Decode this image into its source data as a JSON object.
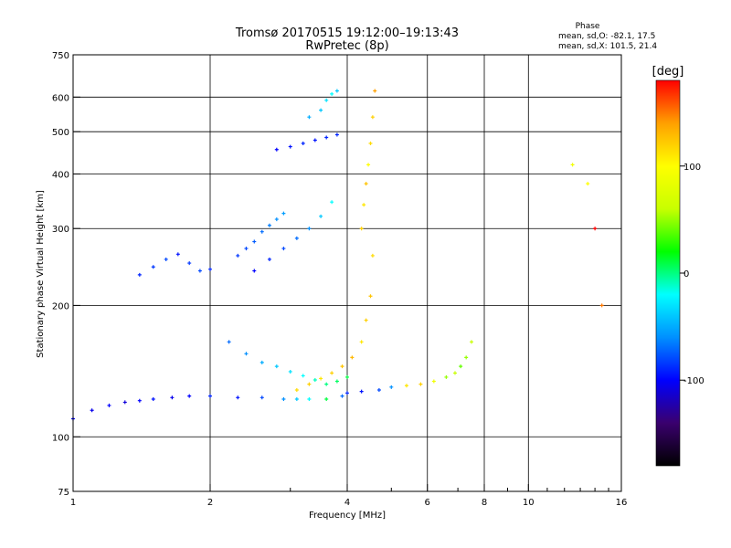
{
  "chart_data": {
    "type": "scatter",
    "title": "Tromsø 20170515 19:12:00–19:13:43",
    "subtitle": "RwPretec (8p)",
    "xlabel": "Frequency [MHz]",
    "ylabel": "Stationary phase Virtual Height [km]",
    "x_scale": "log",
    "y_scale": "log",
    "xlim": [
      1,
      16
    ],
    "ylim": [
      75,
      750
    ],
    "x_ticks": [
      1,
      2,
      4,
      6,
      8,
      10,
      16
    ],
    "x_tick_labels": [
      "1",
      "2",
      "4",
      "6",
      "8",
      "10",
      "16"
    ],
    "x_minor_ticks": [
      3,
      5,
      7,
      9,
      11,
      12,
      13,
      14,
      15
    ],
    "y_ticks": [
      75,
      100,
      200,
      300,
      400,
      500,
      600,
      750
    ],
    "y_tick_labels": [
      "75",
      "100",
      "200",
      "300",
      "400",
      "500",
      "600",
      "750"
    ],
    "y_gridlines": [
      100,
      200,
      300,
      400,
      500,
      600
    ],
    "x_gridlines": [
      2,
      4,
      6,
      8,
      10
    ],
    "grid": true,
    "phase_info": {
      "heading": "Phase",
      "line1": "mean, sd,O: -82.1, 17.5",
      "line2": "mean, sd,X: 101.5, 21.4"
    },
    "colorbar": {
      "label": "[deg]",
      "ticks": [
        100,
        0,
        -100
      ],
      "tick_labels": [
        "100",
        "0",
        "-100"
      ],
      "range": [
        -180,
        180
      ],
      "colors": [
        "#000000",
        "#3a006e",
        "#0000ff",
        "#0090ff",
        "#00ffff",
        "#00ff00",
        "#c8ff00",
        "#ffff00",
        "#ffa000",
        "#ff0000"
      ]
    },
    "series": [
      {
        "x": [
          1.0,
          1.1,
          1.2,
          1.3,
          1.4,
          1.5,
          1.65,
          1.8,
          2.0,
          2.3,
          2.6,
          2.9,
          3.1,
          3.3,
          3.6,
          3.9
        ],
        "y": [
          110,
          115,
          118,
          120,
          121,
          122,
          123,
          124,
          124,
          123,
          123,
          122,
          122,
          122,
          122,
          124
        ],
        "phase": [
          -100,
          -105,
          -100,
          -110,
          -100,
          -95,
          -105,
          -100,
          -90,
          -95,
          -80,
          -60,
          -40,
          -20,
          10,
          -70
        ]
      },
      {
        "x": [
          4.0,
          4.3,
          4.7,
          5.0,
          5.4,
          5.8,
          6.2,
          6.6,
          6.9,
          7.1,
          7.3,
          7.5
        ],
        "y": [
          126,
          127,
          128,
          130,
          131,
          132,
          134,
          137,
          140,
          145,
          152,
          165
        ],
        "phase": [
          -90,
          -95,
          -80,
          -60,
          110,
          120,
          90,
          50,
          60,
          40,
          50,
          60
        ]
      },
      {
        "x": [
          2.2,
          2.4,
          2.6,
          2.8,
          3.0,
          3.2,
          3.4,
          3.6,
          3.8,
          4.0
        ],
        "y": [
          165,
          155,
          148,
          145,
          141,
          138,
          135,
          132,
          134,
          137
        ],
        "phase": [
          -70,
          -60,
          -50,
          -40,
          -30,
          -20,
          -10,
          0,
          5,
          10
        ]
      },
      {
        "x": [
          3.1,
          3.3,
          3.5,
          3.7,
          3.9,
          4.1,
          4.3,
          4.4,
          4.5,
          4.55
        ],
        "y": [
          128,
          132,
          136,
          140,
          145,
          152,
          165,
          185,
          210,
          260
        ],
        "phase": [
          115,
          120,
          110,
          120,
          125,
          130,
          110,
          120,
          125,
          115
        ]
      },
      {
        "x": [
          4.3,
          4.35,
          4.4,
          4.45,
          4.5,
          4.55,
          4.6
        ],
        "y": [
          300,
          340,
          380,
          420,
          470,
          540,
          620
        ],
        "phase": [
          120,
          110,
          125,
          100,
          115,
          120,
          140
        ]
      },
      {
        "x": [
          2.5,
          2.7,
          2.9,
          3.1,
          3.3,
          3.5,
          3.7
        ],
        "y": [
          240,
          255,
          270,
          285,
          300,
          320,
          345
        ],
        "phase": [
          -100,
          -90,
          -80,
          -70,
          -60,
          -40,
          -20
        ]
      },
      {
        "x": [
          2.8,
          3.0,
          3.2,
          3.4,
          3.6,
          3.8
        ],
        "y": [
          455,
          462,
          470,
          478,
          485,
          492
        ],
        "phase": [
          -100,
          -95,
          -90,
          -95,
          -90,
          -90
        ]
      },
      {
        "x": [
          3.3,
          3.5,
          3.6,
          3.7,
          3.8
        ],
        "y": [
          540,
          560,
          590,
          610,
          620
        ],
        "phase": [
          -50,
          -40,
          -30,
          -20,
          -40
        ]
      },
      {
        "x": [
          1.4,
          1.5,
          1.6,
          1.7,
          1.8,
          1.9,
          2.0
        ],
        "y": [
          235,
          245,
          255,
          262,
          250,
          240,
          242
        ],
        "phase": [
          -90,
          -85,
          -80,
          -95,
          -85,
          -80,
          -90
        ]
      },
      {
        "x": [
          2.3,
          2.4,
          2.5,
          2.6,
          2.7,
          2.8,
          2.9
        ],
        "y": [
          260,
          270,
          280,
          295,
          305,
          315,
          325
        ],
        "phase": [
          -85,
          -80,
          -75,
          -70,
          -65,
          -60,
          -55
        ]
      },
      {
        "x": [
          12.5,
          13.5,
          14.0,
          14.5
        ],
        "y": [
          420,
          380,
          300,
          200
        ],
        "phase": [
          90,
          100,
          180,
          150
        ]
      }
    ]
  }
}
